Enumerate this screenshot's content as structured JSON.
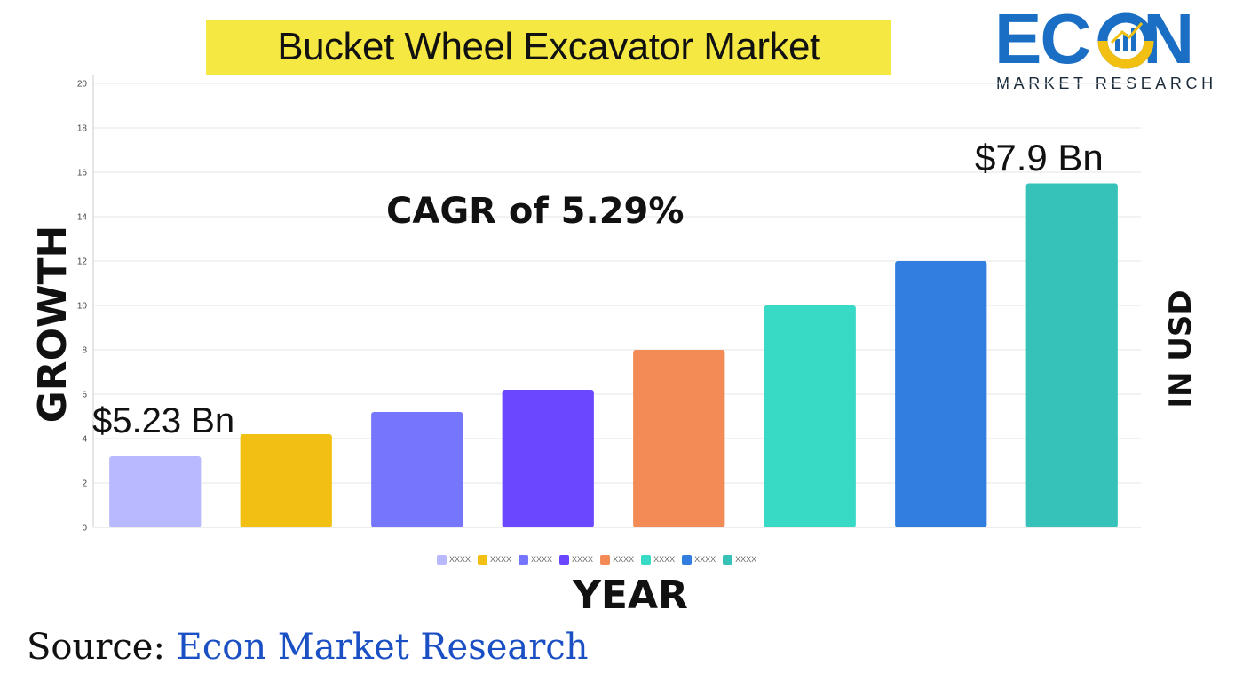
{
  "title": "Bucket Wheel Excavator Market",
  "logo": {
    "word": "ECON",
    "sub": "MARKET RESEARCH",
    "colors": {
      "primary": "#1a6fc4",
      "accent": "#f2c012"
    }
  },
  "labels": {
    "y_left": "GROWTH",
    "y_right": "IN USD",
    "x": "YEAR",
    "cagr": "CAGR of 5.29%",
    "start_value": "$5.23 Bn",
    "end_value": "$7.9 Bn"
  },
  "source": {
    "prefix": "Source:",
    "name": "Econ Market Research"
  },
  "chart_data": {
    "type": "bar",
    "title": "Bucket Wheel Excavator Market",
    "xlabel": "YEAR",
    "ylabel": "GROWTH",
    "ylim": [
      0,
      20
    ],
    "yticks": [
      0,
      2,
      4,
      6,
      8,
      10,
      12,
      14,
      16,
      18,
      20
    ],
    "grid": true,
    "legend": "bottom-center",
    "categories": [
      "XXXX",
      "XXXX",
      "XXXX",
      "XXXX",
      "XXXX",
      "XXXX",
      "XXXX",
      "XXXX"
    ],
    "values": [
      3.2,
      4.2,
      5.2,
      6.2,
      8.0,
      10.0,
      12.0,
      15.5
    ],
    "colors": [
      "#b9b9ff",
      "#f2c012",
      "#7676fc",
      "#6b47ff",
      "#f28b55",
      "#38d9c5",
      "#317de0",
      "#36c2b8"
    ]
  }
}
